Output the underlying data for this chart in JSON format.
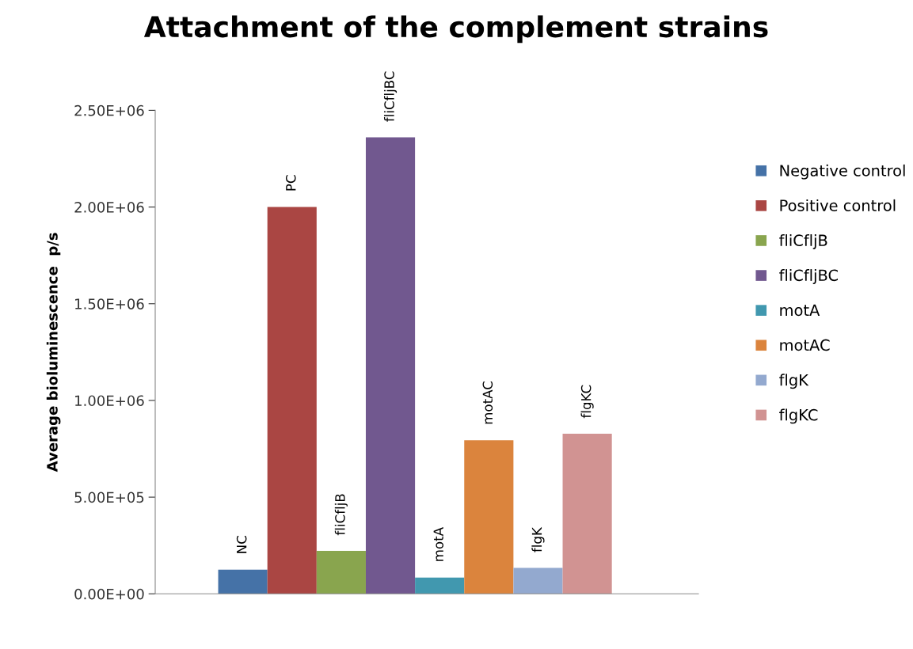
{
  "chart_data": {
    "type": "bar",
    "title": "Attachment of the complement strains",
    "ylabel": "Average bioluminescence  p/s",
    "categories": [
      null
    ],
    "series": [
      {
        "name": "Negative control",
        "color": "#4572a7",
        "values": [
          125000
        ]
      },
      {
        "name": "Positive control",
        "color": "#aa4643",
        "values": [
          2000000
        ]
      },
      {
        "name": "fliCfljB",
        "color": "#89a54e",
        "values": [
          222000
        ]
      },
      {
        "name": "fliCfljBC",
        "color": "#71588f",
        "values": [
          2360000
        ]
      },
      {
        "name": "motA",
        "color": "#4198af",
        "values": [
          84000
        ]
      },
      {
        "name": "motAC",
        "color": "#db843d",
        "values": [
          794000
        ]
      },
      {
        "name": "flgK",
        "color": "#93a9cf",
        "values": [
          134000
        ]
      },
      {
        "name": "flgKC",
        "color": "#d19392",
        "values": [
          828000
        ]
      }
    ],
    "annotations": [
      {
        "text": "NC",
        "y": 125000
      },
      {
        "text": "PC",
        "y": 2000000
      },
      {
        "text": "fliCfljB",
        "y": 222000
      },
      {
        "text": "fliCfljBC",
        "y": 2360000
      },
      {
        "text": "motA",
        "y": 84000
      },
      {
        "text": "motAC",
        "y": 794000
      },
      {
        "text": "flgK",
        "y": 134000
      },
      {
        "text": "flgKC",
        "y": 828000
      }
    ],
    "ylim": [
      0,
      2500000
    ],
    "yticks": [
      {
        "value": 0,
        "label": "0.00E+00"
      },
      {
        "value": 500000,
        "label": "5.00E+05"
      },
      {
        "value": 1000000,
        "label": "1.00E+06"
      },
      {
        "value": 1500000,
        "label": "1.50E+06"
      },
      {
        "value": 2000000,
        "label": "2.00E+06"
      },
      {
        "value": 2500000,
        "label": "2.50E+06"
      }
    ],
    "grid": false,
    "legend": "right"
  }
}
